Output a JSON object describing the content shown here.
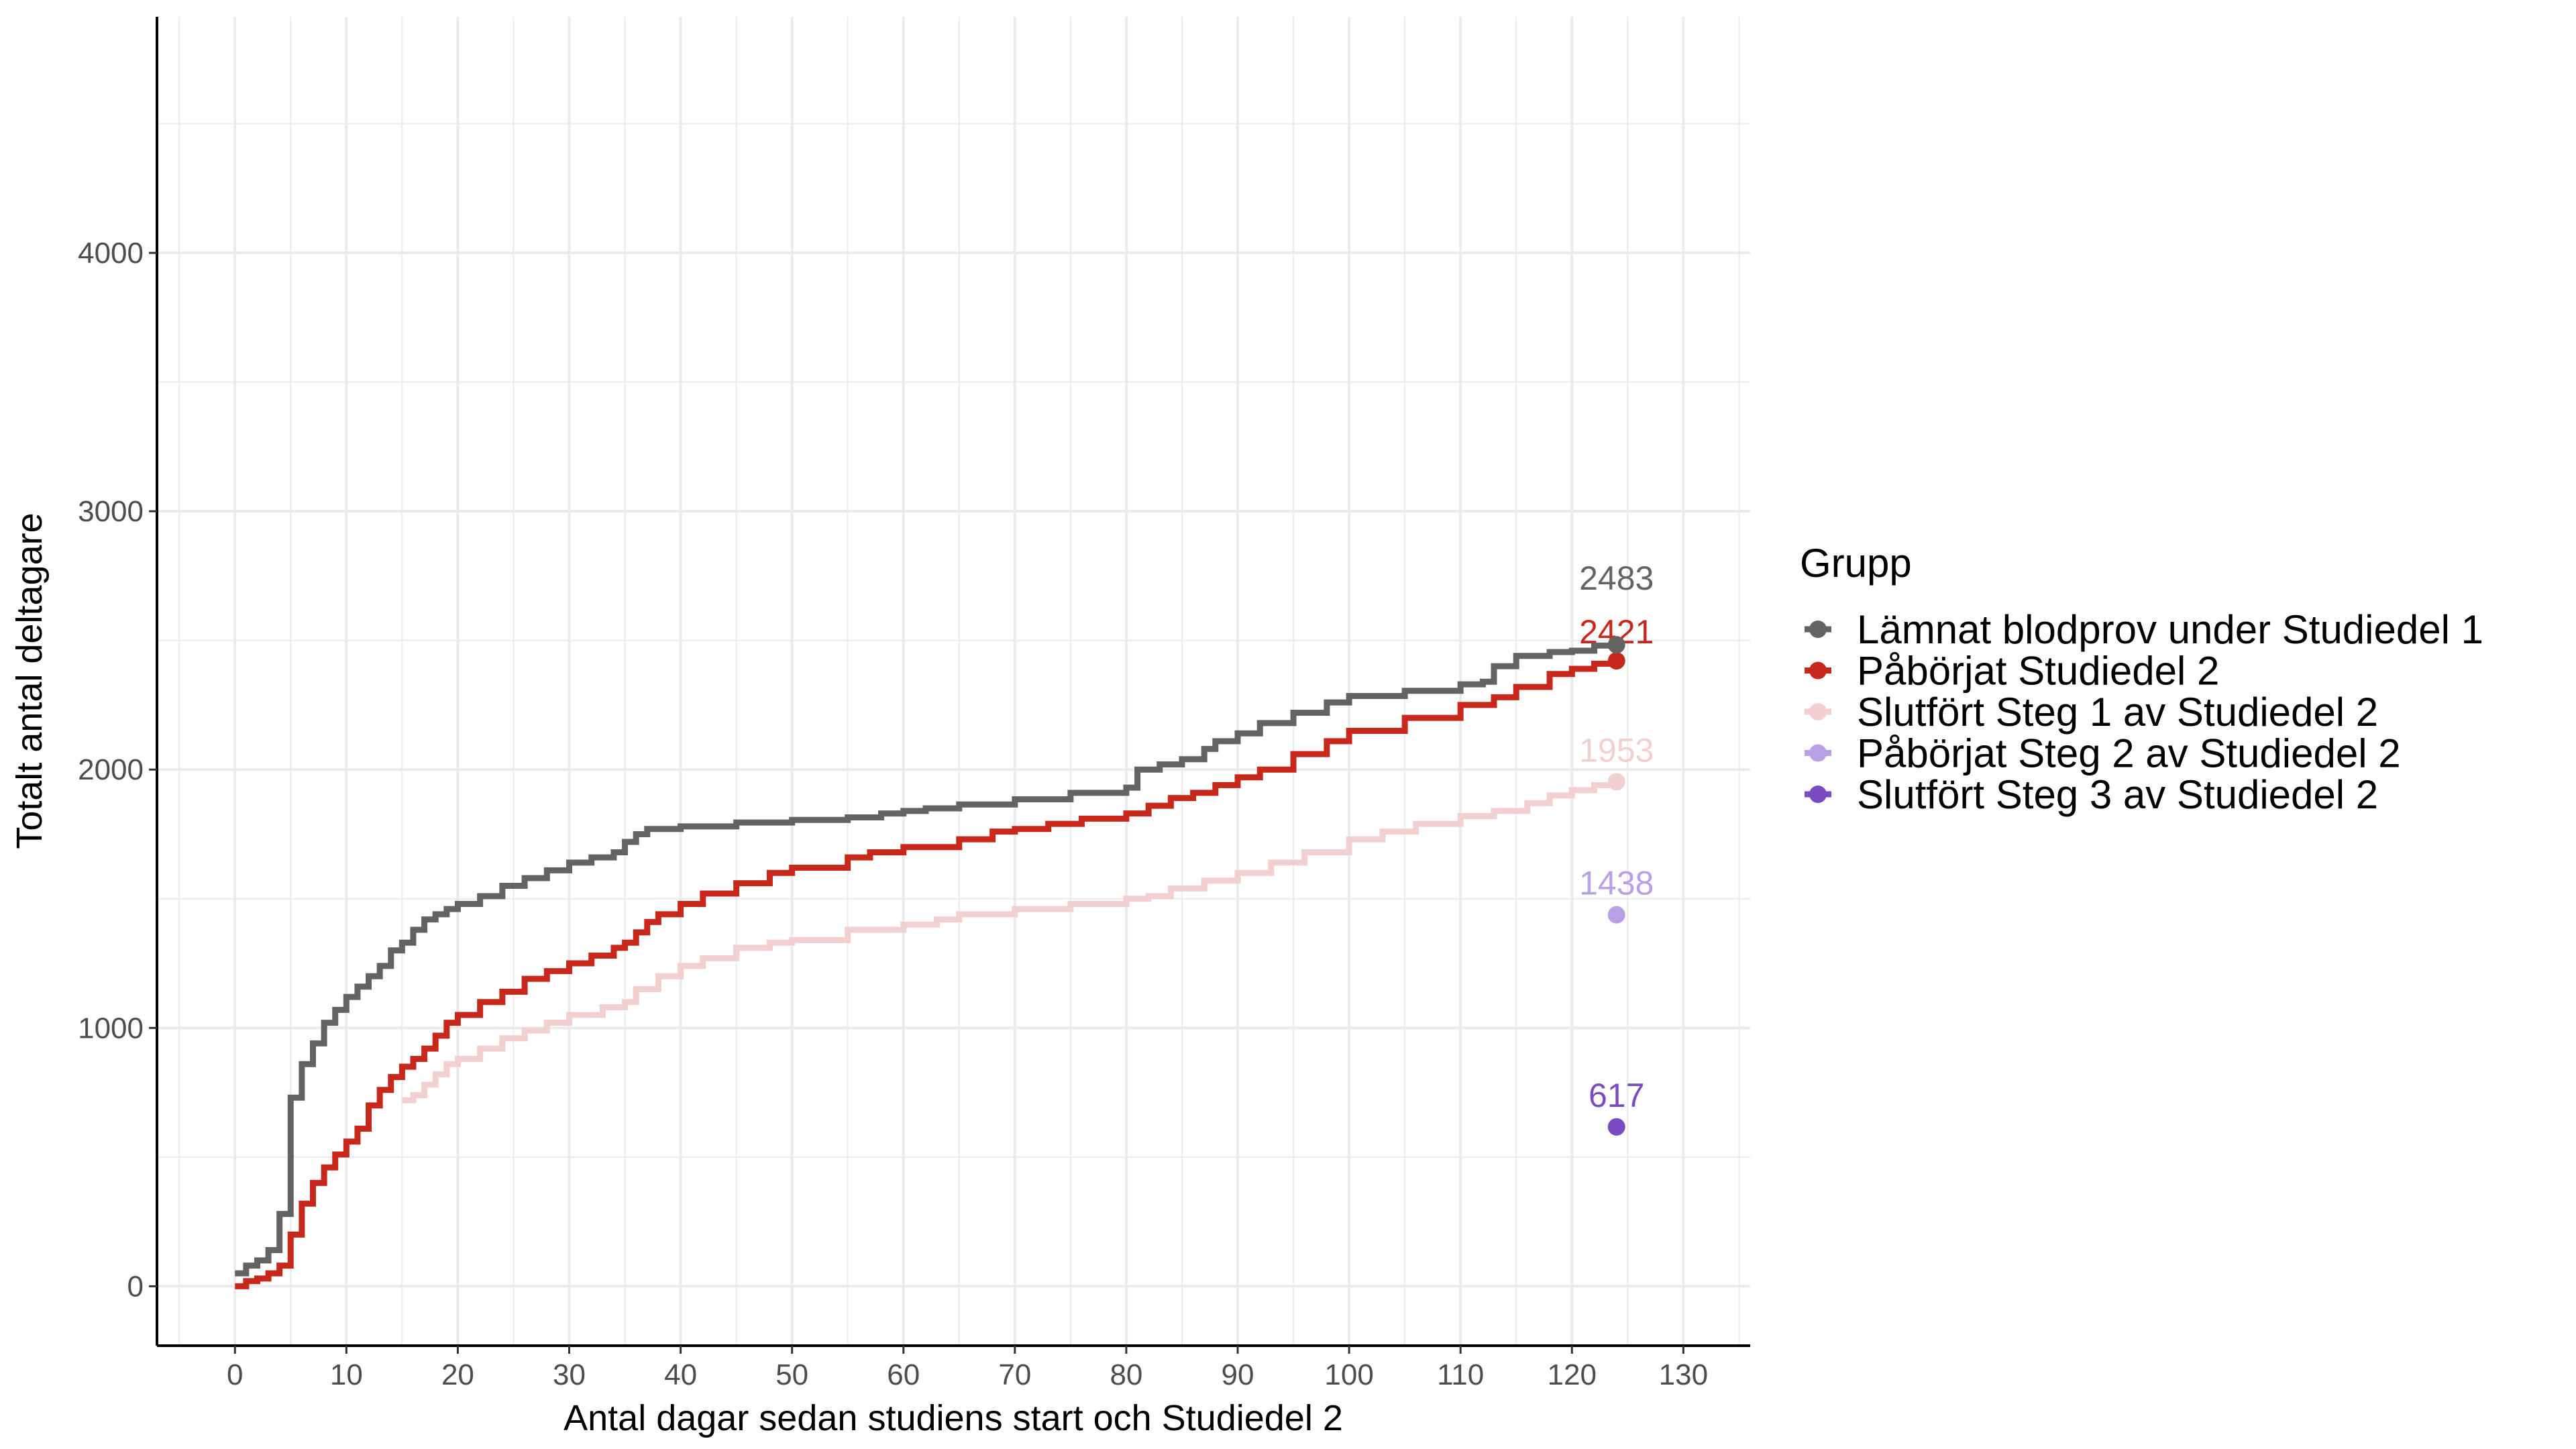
{
  "chart_data": {
    "type": "line",
    "step": true,
    "xlabel": "Antal dagar sedan studiens start och Studiedel 2",
    "ylabel": "Totalt antal deltagare",
    "xlim": [
      -7,
      136
    ],
    "ylim": [
      -230,
      4914
    ],
    "xticks": [
      0,
      10,
      20,
      30,
      40,
      50,
      60,
      70,
      80,
      90,
      100,
      110,
      120,
      130
    ],
    "yticks": [
      0,
      1000,
      2000,
      3000,
      4000
    ],
    "grid": true,
    "legend_title": "Grupp",
    "legend_position": "right",
    "series": [
      {
        "name": "Lämnat blodprov under Studiedel 1",
        "color": "#636363",
        "end_label": "2483",
        "x": [
          0,
          1,
          2,
          3,
          4,
          5,
          6,
          7,
          8,
          9,
          10,
          11,
          12,
          13,
          14,
          15,
          16,
          17,
          18,
          19,
          20,
          22,
          24,
          26,
          28,
          30,
          32,
          34,
          35,
          36,
          37,
          40,
          45,
          50,
          55,
          58,
          60,
          62,
          65,
          70,
          75,
          80,
          81,
          83,
          85,
          87,
          88,
          90,
          92,
          95,
          98,
          100,
          105,
          110,
          112,
          113,
          115,
          118,
          120,
          122,
          124
        ],
        "y": [
          50,
          80,
          100,
          140,
          280,
          730,
          860,
          940,
          1020,
          1070,
          1120,
          1160,
          1200,
          1240,
          1300,
          1330,
          1380,
          1420,
          1440,
          1460,
          1480,
          1510,
          1550,
          1580,
          1610,
          1640,
          1660,
          1680,
          1720,
          1750,
          1770,
          1780,
          1795,
          1805,
          1815,
          1830,
          1840,
          1850,
          1865,
          1885,
          1910,
          1930,
          2000,
          2020,
          2040,
          2080,
          2110,
          2140,
          2180,
          2220,
          2260,
          2285,
          2305,
          2330,
          2340,
          2400,
          2440,
          2455,
          2460,
          2480,
          2483
        ]
      },
      {
        "name": "Påbörjat Studiedel 2",
        "color": "#c8281c",
        "end_label": "2421",
        "x": [
          0,
          1,
          2,
          3,
          4,
          5,
          6,
          7,
          8,
          9,
          10,
          11,
          12,
          13,
          14,
          15,
          16,
          17,
          18,
          19,
          20,
          22,
          24,
          26,
          28,
          30,
          32,
          34,
          35,
          36,
          37,
          38,
          40,
          42,
          45,
          48,
          50,
          55,
          57,
          60,
          65,
          68,
          70,
          73,
          76,
          80,
          82,
          84,
          86,
          88,
          90,
          92,
          95,
          98,
          100,
          105,
          110,
          113,
          115,
          118,
          120,
          122,
          124
        ],
        "y": [
          0,
          20,
          30,
          50,
          80,
          200,
          320,
          400,
          460,
          510,
          560,
          610,
          700,
          760,
          810,
          850,
          880,
          920,
          970,
          1020,
          1050,
          1100,
          1140,
          1190,
          1220,
          1250,
          1280,
          1310,
          1330,
          1370,
          1410,
          1440,
          1480,
          1520,
          1560,
          1600,
          1620,
          1660,
          1680,
          1700,
          1730,
          1760,
          1770,
          1790,
          1810,
          1830,
          1860,
          1890,
          1910,
          1940,
          1970,
          2000,
          2060,
          2110,
          2150,
          2200,
          2250,
          2280,
          2320,
          2370,
          2390,
          2410,
          2421
        ]
      },
      {
        "name": "Slutfört Steg 1 av Studiedel 2",
        "color": "#f2d0d0",
        "end_label": "1953",
        "x": [
          15,
          16,
          17,
          18,
          19,
          20,
          22,
          24,
          26,
          28,
          30,
          33,
          35,
          36,
          38,
          40,
          42,
          45,
          48,
          50,
          55,
          60,
          63,
          65,
          70,
          75,
          80,
          82,
          84,
          87,
          90,
          93,
          96,
          100,
          103,
          106,
          110,
          113,
          116,
          118,
          120,
          122,
          124
        ],
        "y": [
          720,
          740,
          780,
          820,
          860,
          880,
          920,
          960,
          990,
          1020,
          1050,
          1080,
          1100,
          1150,
          1200,
          1240,
          1270,
          1310,
          1330,
          1340,
          1380,
          1400,
          1420,
          1440,
          1460,
          1480,
          1500,
          1510,
          1540,
          1570,
          1600,
          1640,
          1680,
          1730,
          1760,
          1790,
          1820,
          1840,
          1870,
          1900,
          1920,
          1940,
          1953
        ]
      },
      {
        "name": "Påbörjat Steg 2 av Studiedel 2",
        "color": "#b9a0e6",
        "end_label": "1438",
        "x": [
          124
        ],
        "y": [
          1438
        ]
      },
      {
        "name": "Slutfört Steg 3 av Studiedel 2",
        "color": "#7b4bc4",
        "end_label": "617",
        "x": [
          124
        ],
        "y": [
          617
        ]
      }
    ]
  }
}
